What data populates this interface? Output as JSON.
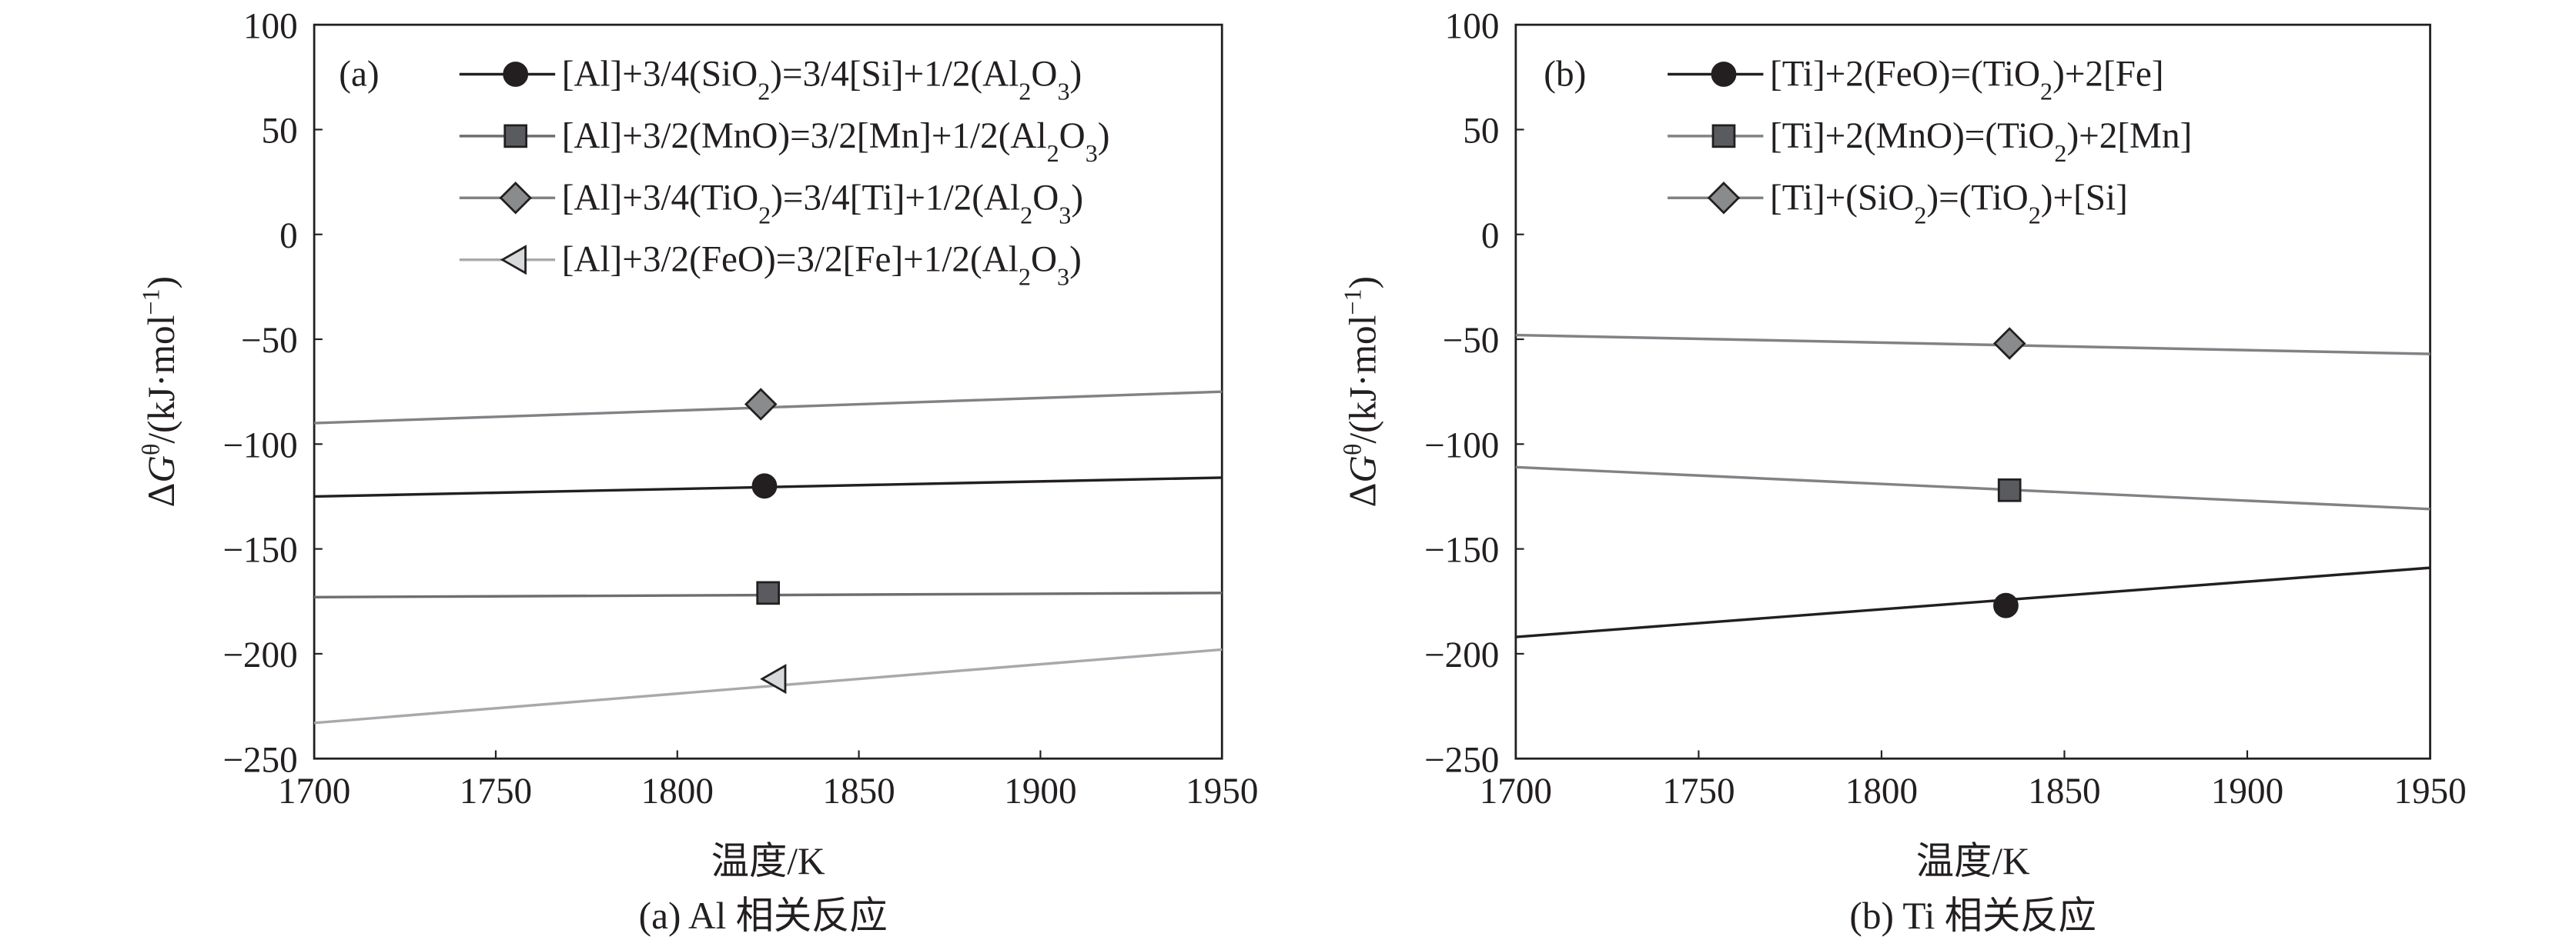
{
  "chart_data": [
    {
      "type": "line",
      "panel_tag": "(a)",
      "caption": "(a) Al 相关反应",
      "xlabel": "温度/K",
      "ylabel": "ΔGθ/(kJ·mol−1)",
      "xlim": [
        1700,
        1950
      ],
      "ylim": [
        -250,
        100
      ],
      "xticks": [
        1700,
        1750,
        1800,
        1850,
        1900,
        1950
      ],
      "yticks": [
        100,
        50,
        0,
        -50,
        -100,
        -150,
        -200,
        -250
      ],
      "grid": false,
      "legend_position": "top-right",
      "series": [
        {
          "name": "[Al]+3/4(SiO2)=3/4[Si]+1/2(Al2O3)",
          "marker": "circle",
          "color": "#231f20",
          "marker_fill": "#231f20",
          "x": [
            1700,
            1950
          ],
          "y": [
            -125,
            -116
          ],
          "marker_point": [
            1824,
            -120
          ]
        },
        {
          "name": "[Al]+3/2(MnO)=3/2[Mn]+1/2(Al2O3)",
          "marker": "square",
          "color": "#6d6e71",
          "marker_fill": "#5a5b5e",
          "x": [
            1700,
            1950
          ],
          "y": [
            -173,
            -171
          ],
          "marker_point": [
            1825,
            -171
          ]
        },
        {
          "name": "[Al]+3/4(TiO2)=3/4[Ti]+1/2(Al2O3)",
          "marker": "diamond",
          "color": "#808285",
          "marker_fill": "#8a8b8d",
          "x": [
            1700,
            1950
          ],
          "y": [
            -90,
            -75
          ],
          "marker_point": [
            1823,
            -81
          ]
        },
        {
          "name": "[Al]+3/2(FeO)=3/2[Fe]+1/2(Al2O3)",
          "marker": "triangle-left",
          "color": "#a7a9ac",
          "marker_fill": "#d8d9da",
          "x": [
            1700,
            1950
          ],
          "y": [
            -233,
            -198
          ],
          "marker_point": [
            1827,
            -212
          ]
        }
      ]
    },
    {
      "type": "line",
      "panel_tag": "(b)",
      "caption": "(b) Ti 相关反应",
      "xlabel": "温度/K",
      "ylabel": "ΔGθ/(kJ·mol−1)",
      "xlim": [
        1700,
        1950
      ],
      "ylim": [
        -250,
        100
      ],
      "xticks": [
        1700,
        1750,
        1800,
        1850,
        1900,
        1950
      ],
      "yticks": [
        100,
        50,
        0,
        -50,
        -100,
        -150,
        -200,
        -250
      ],
      "grid": false,
      "legend_position": "top-right",
      "series": [
        {
          "name": "[Ti]+2(FeO)=(TiO2)+2[Fe]",
          "marker": "circle",
          "color": "#231f20",
          "marker_fill": "#231f20",
          "x": [
            1700,
            1950
          ],
          "y": [
            -192,
            -159
          ],
          "marker_point": [
            1834,
            -177
          ]
        },
        {
          "name": "[Ti]+2(MnO)=(TiO2)+2[Mn]",
          "marker": "square",
          "color": "#808285",
          "marker_fill": "#5a5b5e",
          "x": [
            1700,
            1950
          ],
          "y": [
            -111,
            -131
          ],
          "marker_point": [
            1835,
            -122
          ]
        },
        {
          "name": "[Ti]+(SiO2)=(TiO2)+[Si]",
          "marker": "diamond",
          "color": "#808285",
          "marker_fill": "#8a8b8d",
          "x": [
            1700,
            1950
          ],
          "y": [
            -48,
            -57
          ],
          "marker_point": [
            1835,
            -52
          ]
        }
      ]
    }
  ]
}
